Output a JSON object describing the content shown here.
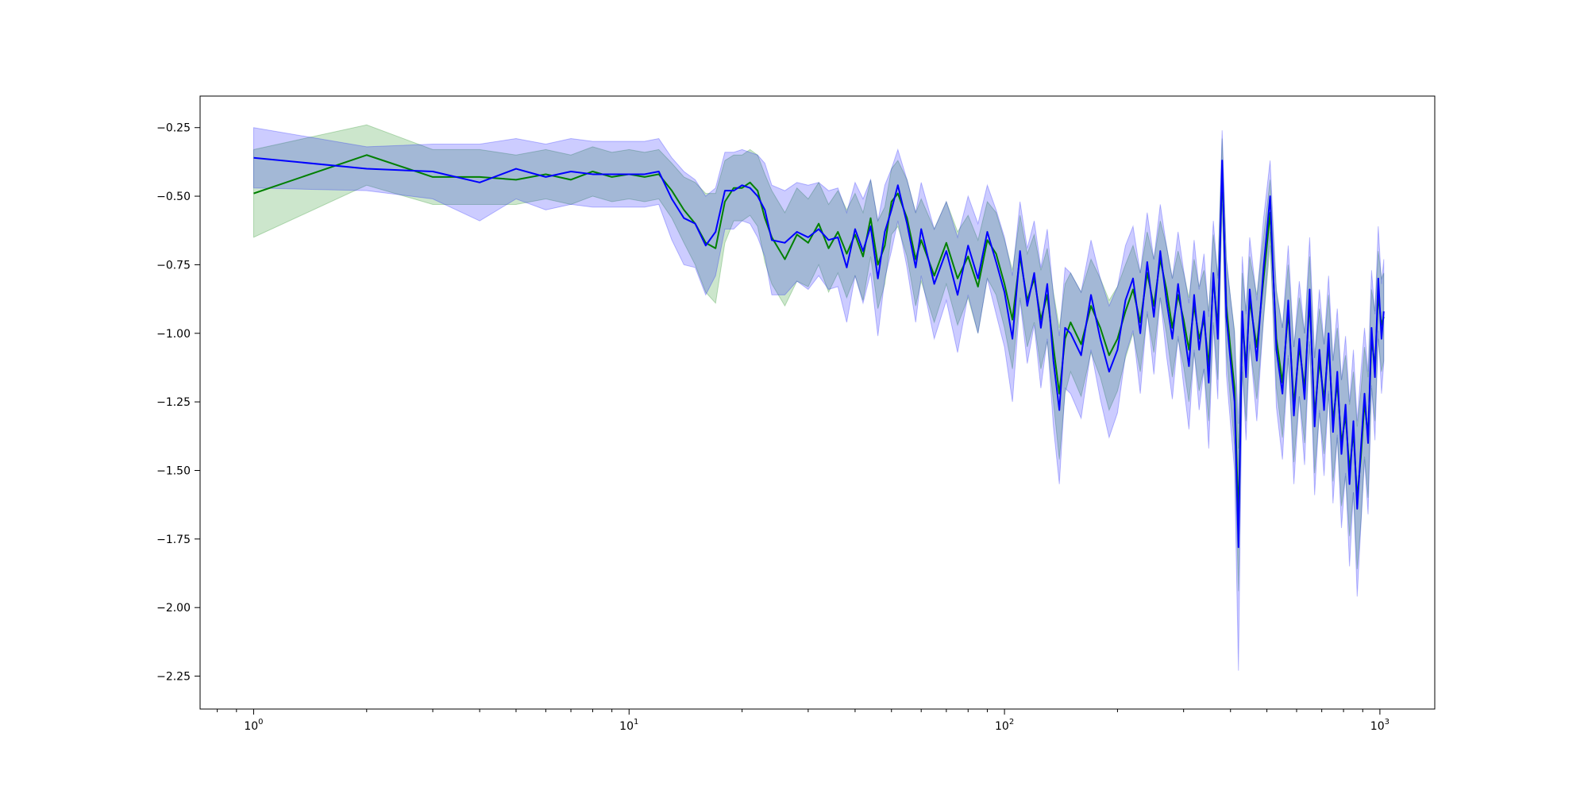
{
  "chart_data": {
    "type": "line",
    "title": "",
    "xlabel": "",
    "ylabel": "",
    "x_scale": "log",
    "xlim": [
      0.72,
      1400
    ],
    "ylim": [
      -2.37,
      -0.135
    ],
    "grid": false,
    "x_ticks": [
      {
        "value": 1,
        "base": "10",
        "exp": "0"
      },
      {
        "value": 10,
        "base": "10",
        "exp": "1"
      },
      {
        "value": 100,
        "base": "10",
        "exp": "2"
      },
      {
        "value": 1000,
        "base": "10",
        "exp": "3"
      }
    ],
    "y_ticks": [
      {
        "value": -0.25,
        "label": "−0.25"
      },
      {
        "value": -0.5,
        "label": "−0.50"
      },
      {
        "value": -0.75,
        "label": "−0.75"
      },
      {
        "value": -1.0,
        "label": "−1.00"
      },
      {
        "value": -1.25,
        "label": "−1.25"
      },
      {
        "value": -1.5,
        "label": "−1.50"
      },
      {
        "value": -1.75,
        "label": "−1.75"
      },
      {
        "value": -2.0,
        "label": "−2.00"
      },
      {
        "value": -2.25,
        "label": "−2.25"
      }
    ],
    "series": [
      {
        "color": "#008000",
        "band_color": "#008000",
        "points": [
          [
            1,
            -0.49
          ],
          [
            2,
            -0.35
          ],
          [
            3,
            -0.43
          ],
          [
            4,
            -0.43
          ],
          [
            5,
            -0.44
          ],
          [
            6,
            -0.42
          ],
          [
            7,
            -0.44
          ],
          [
            8,
            -0.41
          ],
          [
            9,
            -0.43
          ],
          [
            10,
            -0.42
          ],
          [
            11,
            -0.43
          ],
          [
            12,
            -0.42
          ],
          [
            13,
            -0.48
          ],
          [
            14,
            -0.55
          ],
          [
            15,
            -0.6
          ],
          [
            16,
            -0.67
          ],
          [
            17,
            -0.69
          ],
          [
            18,
            -0.52
          ],
          [
            19,
            -0.47
          ],
          [
            20,
            -0.47
          ],
          [
            21,
            -0.45
          ],
          [
            22,
            -0.48
          ],
          [
            23,
            -0.58
          ],
          [
            24,
            -0.65
          ],
          [
            26,
            -0.73
          ],
          [
            28,
            -0.64
          ],
          [
            30,
            -0.67
          ],
          [
            32,
            -0.6
          ],
          [
            34,
            -0.69
          ],
          [
            36,
            -0.63
          ],
          [
            38,
            -0.71
          ],
          [
            40,
            -0.64
          ],
          [
            42,
            -0.72
          ],
          [
            44,
            -0.58
          ],
          [
            46,
            -0.75
          ],
          [
            48,
            -0.68
          ],
          [
            50,
            -0.52
          ],
          [
            52,
            -0.49
          ],
          [
            55,
            -0.58
          ],
          [
            58,
            -0.73
          ],
          [
            60,
            -0.66
          ],
          [
            65,
            -0.79
          ],
          [
            70,
            -0.67
          ],
          [
            75,
            -0.8
          ],
          [
            80,
            -0.72
          ],
          [
            85,
            -0.83
          ],
          [
            90,
            -0.66
          ],
          [
            95,
            -0.71
          ],
          [
            100,
            -0.82
          ],
          [
            105,
            -0.95
          ],
          [
            110,
            -0.72
          ],
          [
            115,
            -0.88
          ],
          [
            120,
            -0.8
          ],
          [
            125,
            -0.95
          ],
          [
            130,
            -0.86
          ],
          [
            135,
            -1.05
          ],
          [
            140,
            -1.22
          ],
          [
            145,
            -1.02
          ],
          [
            150,
            -0.96
          ],
          [
            160,
            -1.04
          ],
          [
            170,
            -0.9
          ],
          [
            180,
            -0.98
          ],
          [
            190,
            -1.08
          ],
          [
            200,
            -1.02
          ],
          [
            210,
            -0.92
          ],
          [
            220,
            -0.84
          ],
          [
            230,
            -0.96
          ],
          [
            240,
            -0.78
          ],
          [
            250,
            -0.9
          ],
          [
            260,
            -0.73
          ],
          [
            270,
            -0.84
          ],
          [
            280,
            -0.98
          ],
          [
            290,
            -0.86
          ],
          [
            300,
            -0.95
          ],
          [
            310,
            -1.06
          ],
          [
            320,
            -0.9
          ],
          [
            330,
            -1.02
          ],
          [
            340,
            -0.95
          ],
          [
            350,
            -1.12
          ],
          [
            360,
            -0.8
          ],
          [
            370,
            -0.98
          ],
          [
            380,
            -0.41
          ],
          [
            390,
            -0.9
          ],
          [
            400,
            -1.06
          ],
          [
            410,
            -1.2
          ],
          [
            420,
            -1.68
          ],
          [
            430,
            -0.96
          ],
          [
            440,
            -1.12
          ],
          [
            450,
            -0.88
          ],
          [
            470,
            -1.05
          ],
          [
            490,
            -0.8
          ],
          [
            510,
            -0.56
          ],
          [
            530,
            -1.02
          ],
          [
            550,
            -1.18
          ],
          [
            570,
            -0.92
          ],
          [
            590,
            -1.26
          ],
          [
            610,
            -1.05
          ],
          [
            630,
            -1.2
          ],
          [
            650,
            -0.88
          ],
          [
            670,
            -1.3
          ],
          [
            690,
            -1.1
          ],
          [
            710,
            -1.24
          ],
          [
            730,
            -1.04
          ],
          [
            750,
            -1.32
          ],
          [
            770,
            -1.18
          ],
          [
            790,
            -1.4
          ],
          [
            810,
            -1.3
          ],
          [
            830,
            -1.5
          ],
          [
            850,
            -1.36
          ],
          [
            870,
            -1.6
          ],
          [
            890,
            -1.45
          ],
          [
            910,
            -1.25
          ],
          [
            930,
            -1.38
          ],
          [
            950,
            -1.02
          ],
          [
            970,
            -1.12
          ],
          [
            990,
            -0.86
          ],
          [
            1010,
            -0.97
          ],
          [
            1024,
            -0.94
          ]
        ],
        "band_width": [
          0.16,
          0.11,
          0.1,
          0.1,
          0.09,
          0.09,
          0.09,
          0.09,
          0.09,
          0.09,
          0.09,
          0.09,
          0.1,
          0.12,
          0.15,
          0.18,
          0.2,
          0.15,
          0.12,
          0.12,
          0.12,
          0.13,
          0.16,
          0.17,
          0.17,
          0.17,
          0.16,
          0.15,
          0.16,
          0.15,
          0.16,
          0.15,
          0.16,
          0.14,
          0.16,
          0.14,
          0.12,
          0.12,
          0.14,
          0.17,
          0.15,
          0.17,
          0.15,
          0.17,
          0.15,
          0.17,
          0.14,
          0.15,
          0.16,
          0.18,
          0.15,
          0.17,
          0.16,
          0.18,
          0.17,
          0.2,
          0.24,
          0.2,
          0.18,
          0.19,
          0.17,
          0.18,
          0.2,
          0.19,
          0.17,
          0.16,
          0.18,
          0.15,
          0.17,
          0.14,
          0.16,
          0.18,
          0.16,
          0.17,
          0.19,
          0.17,
          0.19,
          0.18,
          0.2,
          0.16,
          0.19,
          0.12,
          0.17,
          0.19,
          0.21,
          0.26,
          0.18,
          0.2,
          0.16,
          0.19,
          0.15,
          0.12,
          0.18,
          0.2,
          0.17,
          0.21,
          0.18,
          0.2,
          0.16,
          0.21,
          0.19,
          0.2,
          0.18,
          0.22,
          0.2,
          0.23,
          0.22,
          0.24,
          0.22,
          0.26,
          0.24,
          0.2,
          0.22,
          0.18,
          0.2,
          0.16,
          0.17,
          0.16
        ]
      },
      {
        "color": "#0000ff",
        "band_color": "#0000ff",
        "points": [
          [
            1,
            -0.36
          ],
          [
            2,
            -0.4
          ],
          [
            3,
            -0.41
          ],
          [
            4,
            -0.45
          ],
          [
            5,
            -0.4
          ],
          [
            6,
            -0.43
          ],
          [
            7,
            -0.41
          ],
          [
            8,
            -0.42
          ],
          [
            9,
            -0.42
          ],
          [
            10,
            -0.42
          ],
          [
            11,
            -0.42
          ],
          [
            12,
            -0.41
          ],
          [
            13,
            -0.51
          ],
          [
            14,
            -0.58
          ],
          [
            15,
            -0.6
          ],
          [
            16,
            -0.68
          ],
          [
            17,
            -0.63
          ],
          [
            18,
            -0.48
          ],
          [
            19,
            -0.48
          ],
          [
            20,
            -0.46
          ],
          [
            21,
            -0.47
          ],
          [
            22,
            -0.5
          ],
          [
            23,
            -0.55
          ],
          [
            24,
            -0.66
          ],
          [
            26,
            -0.67
          ],
          [
            28,
            -0.63
          ],
          [
            30,
            -0.65
          ],
          [
            32,
            -0.62
          ],
          [
            34,
            -0.66
          ],
          [
            36,
            -0.65
          ],
          [
            38,
            -0.76
          ],
          [
            40,
            -0.62
          ],
          [
            42,
            -0.7
          ],
          [
            44,
            -0.61
          ],
          [
            46,
            -0.8
          ],
          [
            48,
            -0.63
          ],
          [
            50,
            -0.55
          ],
          [
            52,
            -0.46
          ],
          [
            55,
            -0.6
          ],
          [
            58,
            -0.76
          ],
          [
            60,
            -0.62
          ],
          [
            65,
            -0.82
          ],
          [
            70,
            -0.7
          ],
          [
            75,
            -0.86
          ],
          [
            80,
            -0.68
          ],
          [
            85,
            -0.8
          ],
          [
            90,
            -0.63
          ],
          [
            95,
            -0.74
          ],
          [
            100,
            -0.85
          ],
          [
            105,
            -1.02
          ],
          [
            110,
            -0.7
          ],
          [
            115,
            -0.9
          ],
          [
            120,
            -0.78
          ],
          [
            125,
            -0.98
          ],
          [
            130,
            -0.82
          ],
          [
            135,
            -1.1
          ],
          [
            140,
            -1.28
          ],
          [
            145,
            -0.98
          ],
          [
            150,
            -1.0
          ],
          [
            160,
            -1.08
          ],
          [
            170,
            -0.86
          ],
          [
            180,
            -1.02
          ],
          [
            190,
            -1.14
          ],
          [
            200,
            -1.06
          ],
          [
            210,
            -0.88
          ],
          [
            220,
            -0.8
          ],
          [
            230,
            -1.0
          ],
          [
            240,
            -0.74
          ],
          [
            250,
            -0.94
          ],
          [
            260,
            -0.7
          ],
          [
            270,
            -0.88
          ],
          [
            280,
            -1.02
          ],
          [
            290,
            -0.82
          ],
          [
            300,
            -0.98
          ],
          [
            310,
            -1.12
          ],
          [
            320,
            -0.86
          ],
          [
            330,
            -1.06
          ],
          [
            340,
            -0.92
          ],
          [
            350,
            -1.18
          ],
          [
            360,
            -0.78
          ],
          [
            370,
            -1.02
          ],
          [
            380,
            -0.37
          ],
          [
            390,
            -0.94
          ],
          [
            400,
            -1.1
          ],
          [
            410,
            -1.25
          ],
          [
            420,
            -1.78
          ],
          [
            430,
            -0.92
          ],
          [
            440,
            -1.16
          ],
          [
            450,
            -0.84
          ],
          [
            470,
            -1.1
          ],
          [
            490,
            -0.76
          ],
          [
            510,
            -0.5
          ],
          [
            530,
            -1.06
          ],
          [
            550,
            -1.22
          ],
          [
            570,
            -0.88
          ],
          [
            590,
            -1.3
          ],
          [
            610,
            -1.02
          ],
          [
            630,
            -1.24
          ],
          [
            650,
            -0.84
          ],
          [
            670,
            -1.34
          ],
          [
            690,
            -1.06
          ],
          [
            710,
            -1.28
          ],
          [
            730,
            -1.0
          ],
          [
            750,
            -1.36
          ],
          [
            770,
            -1.14
          ],
          [
            790,
            -1.44
          ],
          [
            810,
            -1.26
          ],
          [
            830,
            -1.55
          ],
          [
            850,
            -1.32
          ],
          [
            870,
            -1.64
          ],
          [
            890,
            -1.42
          ],
          [
            910,
            -1.22
          ],
          [
            930,
            -1.4
          ],
          [
            950,
            -0.98
          ],
          [
            970,
            -1.16
          ],
          [
            990,
            -0.8
          ],
          [
            1010,
            -1.02
          ],
          [
            1024,
            -0.92
          ]
        ],
        "band_width": [
          0.11,
          0.08,
          0.1,
          0.14,
          0.11,
          0.12,
          0.12,
          0.12,
          0.12,
          0.12,
          0.12,
          0.12,
          0.15,
          0.17,
          0.16,
          0.18,
          0.16,
          0.14,
          0.14,
          0.13,
          0.13,
          0.15,
          0.17,
          0.2,
          0.19,
          0.18,
          0.19,
          0.17,
          0.18,
          0.18,
          0.2,
          0.17,
          0.19,
          0.17,
          0.21,
          0.17,
          0.15,
          0.13,
          0.16,
          0.2,
          0.17,
          0.2,
          0.18,
          0.21,
          0.18,
          0.2,
          0.17,
          0.19,
          0.2,
          0.23,
          0.18,
          0.21,
          0.19,
          0.22,
          0.2,
          0.24,
          0.27,
          0.22,
          0.22,
          0.23,
          0.2,
          0.22,
          0.24,
          0.23,
          0.2,
          0.19,
          0.22,
          0.18,
          0.21,
          0.17,
          0.2,
          0.22,
          0.19,
          0.21,
          0.23,
          0.2,
          0.22,
          0.21,
          0.24,
          0.19,
          0.22,
          0.11,
          0.21,
          0.23,
          0.25,
          0.45,
          0.2,
          0.23,
          0.19,
          0.22,
          0.18,
          0.13,
          0.21,
          0.24,
          0.2,
          0.25,
          0.21,
          0.24,
          0.19,
          0.25,
          0.22,
          0.24,
          0.21,
          0.26,
          0.23,
          0.27,
          0.25,
          0.3,
          0.26,
          0.32,
          0.28,
          0.24,
          0.26,
          0.21,
          0.23,
          0.19,
          0.2,
          0.19
        ]
      }
    ]
  }
}
